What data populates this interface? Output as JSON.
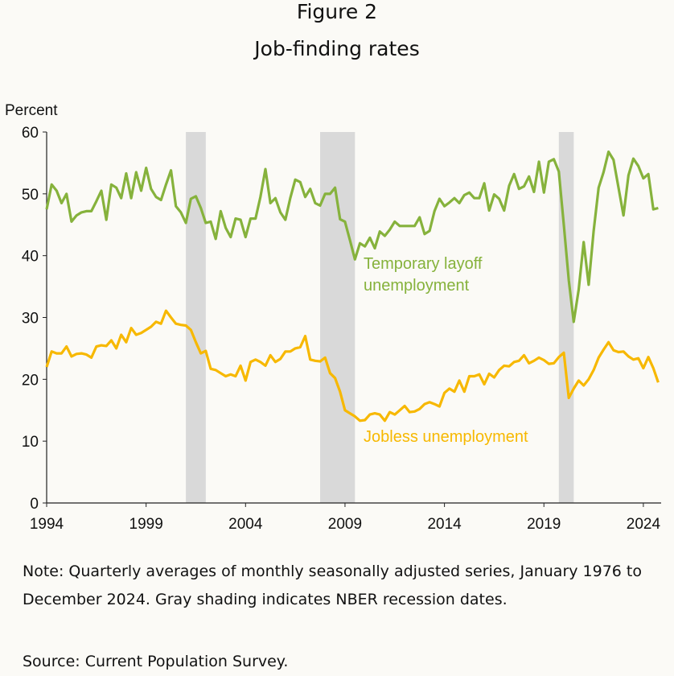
{
  "figure_label": "Figure 2",
  "chart_data": {
    "type": "line",
    "title": "Job-finding rates",
    "ylabel": "Percent",
    "xlabel": "",
    "ylim": [
      0,
      60
    ],
    "xlim": [
      1994,
      2025
    ],
    "yticks": [
      "0",
      "10",
      "20",
      "30",
      "40",
      "50",
      "60"
    ],
    "xticks": [
      "1994",
      "1999",
      "2004",
      "2009",
      "2014",
      "2019",
      "2024"
    ],
    "x_start": 1994.0,
    "x_step": 0.25,
    "recessions": [
      [
        2001.0,
        2002.0
      ],
      [
        2007.75,
        2009.5
      ],
      [
        2019.75,
        2020.5
      ]
    ],
    "colors": {
      "temporary": "#86b23c",
      "jobless": "#f7b800",
      "recession": "#d9d9d9"
    },
    "series": [
      {
        "name": "Temporary layoff unemployment",
        "label_line1": "Temporary layoff",
        "label_line2": "unemployment",
        "values": [
          47.5,
          51.5,
          50.5,
          48.5,
          50,
          45.5,
          46.5,
          47,
          47.2,
          47.2,
          48.8,
          50.5,
          45.8,
          51.5,
          51,
          49.3,
          53.3,
          49.3,
          53.5,
          50.5,
          54.2,
          50.8,
          49.5,
          49,
          51.5,
          53.8,
          48,
          47,
          45.3,
          49.2,
          49.6,
          47.7,
          45.3,
          45.5,
          42.7,
          47.2,
          44.5,
          43,
          46,
          45.8,
          43,
          46,
          46,
          49.5,
          54,
          48.5,
          49.3,
          47,
          45.8,
          49.3,
          52.3,
          51.9,
          49.5,
          50.8,
          48.5,
          48.1,
          50,
          50,
          51,
          45.9,
          45.5,
          42.5,
          39.4,
          42,
          41.5,
          42.9,
          41.2,
          43.9,
          43.2,
          44.2,
          45.5,
          44.8,
          44.8,
          44.8,
          44.8,
          46.2,
          43.5,
          44,
          47.2,
          49.2,
          48,
          48.6,
          49.3,
          48.5,
          49.8,
          50.2,
          49.3,
          49.3,
          51.7,
          47.3,
          49.9,
          49.2,
          47.3,
          51.3,
          53.2,
          50.8,
          51.2,
          52.8,
          50.3,
          55.2,
          50.2,
          55.2,
          55.6,
          53.6,
          45,
          36,
          29.3,
          34.5,
          42.2,
          35.3,
          44,
          51,
          53.5,
          56.8,
          55.5,
          51,
          46.5,
          53,
          55.7,
          54.5,
          52.5,
          53.2,
          47.5,
          47.7
        ]
      },
      {
        "name": "Jobless unemployment",
        "label_line1": "Jobless unemployment",
        "values": [
          22,
          24.5,
          24.2,
          24.2,
          25.3,
          23.7,
          24.1,
          24.2,
          24,
          23.5,
          25.3,
          25.5,
          25.4,
          26.3,
          25,
          27.2,
          26,
          28.3,
          27.2,
          27.5,
          28,
          28.5,
          29.3,
          29,
          31.1,
          30,
          29,
          28.8,
          28.7,
          28,
          26,
          24.2,
          24.6,
          21.7,
          21.5,
          21,
          20.5,
          20.8,
          20.5,
          22.2,
          19.8,
          22.8,
          23.2,
          22.8,
          22.2,
          23.9,
          22.8,
          23.3,
          24.5,
          24.5,
          25,
          25.2,
          27,
          23.2,
          23,
          22.9,
          23.5,
          21,
          20.2,
          18,
          15,
          14.5,
          14,
          13.3,
          13.4,
          14.3,
          14.5,
          14.3,
          13.3,
          14.7,
          14.3,
          15,
          15.7,
          14.7,
          14.8,
          15.2,
          16,
          16.3,
          16,
          15.6,
          17.8,
          18.5,
          18,
          19.8,
          18,
          20.5,
          20.5,
          20.8,
          19.2,
          20.9,
          20.3,
          21.5,
          22.2,
          22.1,
          22.8,
          23,
          23.9,
          22.6,
          23,
          23.5,
          23.1,
          22.5,
          22.6,
          23.6,
          24.3,
          17,
          18.5,
          19.8,
          19,
          20,
          21.5,
          23.5,
          24.8,
          26,
          24.7,
          24.4,
          24.5,
          23.7,
          23.2,
          23.4,
          21.8,
          23.6,
          21.8,
          19.5
        ]
      }
    ]
  },
  "note": "Note: Quarterly averages of monthly seasonally adjusted series, January 1976 to December 2024. Gray shading indicates NBER recession dates.",
  "source": "Source: Current Population Survey."
}
